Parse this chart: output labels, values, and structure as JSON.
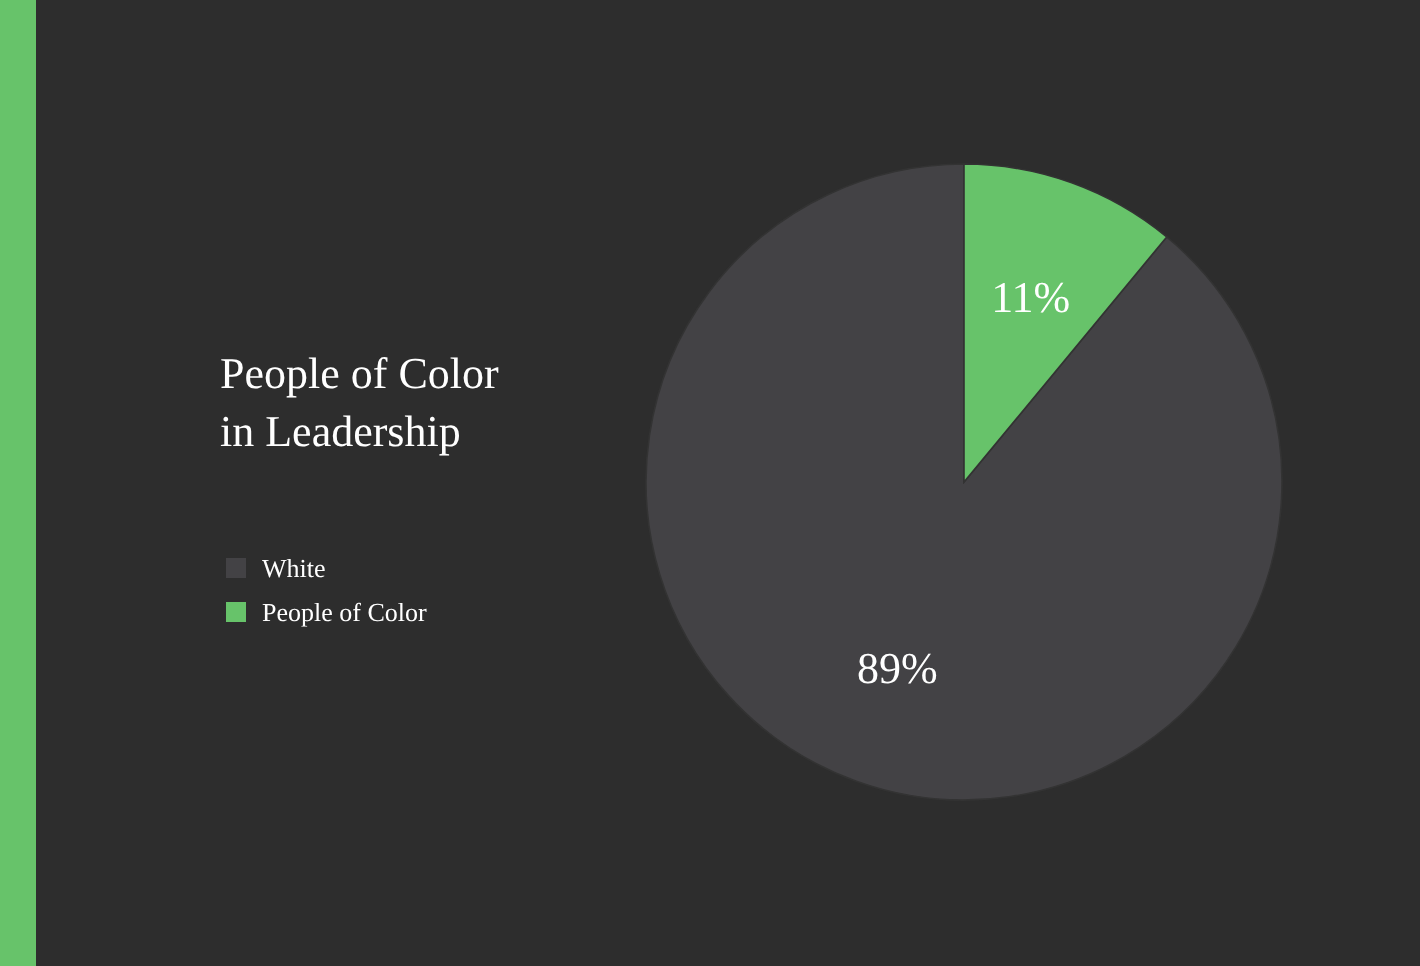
{
  "chart_data": {
    "type": "pie",
    "title": "People of Color\nin Leadership",
    "categories": [
      "White",
      "People of Color"
    ],
    "values": [
      89,
      11
    ],
    "colors": [
      "#434245",
      "#67c36a"
    ],
    "value_labels": [
      "89%",
      "11%"
    ],
    "legend": "left"
  }
}
